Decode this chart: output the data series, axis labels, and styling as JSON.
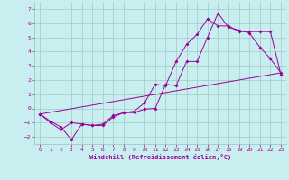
{
  "xlabel": "Windchill (Refroidissement éolien,°C)",
  "bg_color": "#c8eef0",
  "line_color": "#990099",
  "xlim": [
    -0.5,
    23.5
  ],
  "ylim": [
    -2.5,
    7.5
  ],
  "xticks": [
    0,
    1,
    2,
    3,
    4,
    5,
    6,
    7,
    8,
    9,
    10,
    11,
    12,
    13,
    14,
    15,
    16,
    17,
    18,
    19,
    20,
    21,
    22,
    23
  ],
  "yticks": [
    -2,
    -1,
    0,
    1,
    2,
    3,
    4,
    5,
    6,
    7
  ],
  "line1_x": [
    0,
    1,
    2,
    3,
    4,
    5,
    6,
    7,
    8,
    9,
    10,
    11,
    12,
    13,
    14,
    15,
    16,
    17,
    18,
    19,
    20,
    21,
    22,
    23
  ],
  "line1_y": [
    -0.4,
    -0.9,
    -1.3,
    -2.2,
    -1.1,
    -1.2,
    -1.2,
    -0.6,
    -0.3,
    -0.3,
    -0.05,
    0.0,
    1.7,
    1.6,
    3.3,
    3.3,
    5.0,
    6.7,
    5.7,
    5.5,
    5.3,
    4.3,
    3.5,
    2.5
  ],
  "line2_x": [
    0,
    1,
    2,
    3,
    4,
    5,
    6,
    7,
    8,
    9,
    10,
    11,
    12,
    13,
    14,
    15,
    16,
    17,
    18,
    19,
    20,
    21,
    22,
    23
  ],
  "line2_y": [
    -0.4,
    -1.0,
    -1.5,
    -1.0,
    -1.1,
    -1.2,
    -1.1,
    -0.5,
    -0.3,
    -0.2,
    0.4,
    1.7,
    1.6,
    3.3,
    4.5,
    5.2,
    6.3,
    5.8,
    5.8,
    5.4,
    5.4,
    5.4,
    5.4,
    2.4
  ],
  "line3_x": [
    0,
    23
  ],
  "line3_y": [
    -0.4,
    2.5
  ]
}
